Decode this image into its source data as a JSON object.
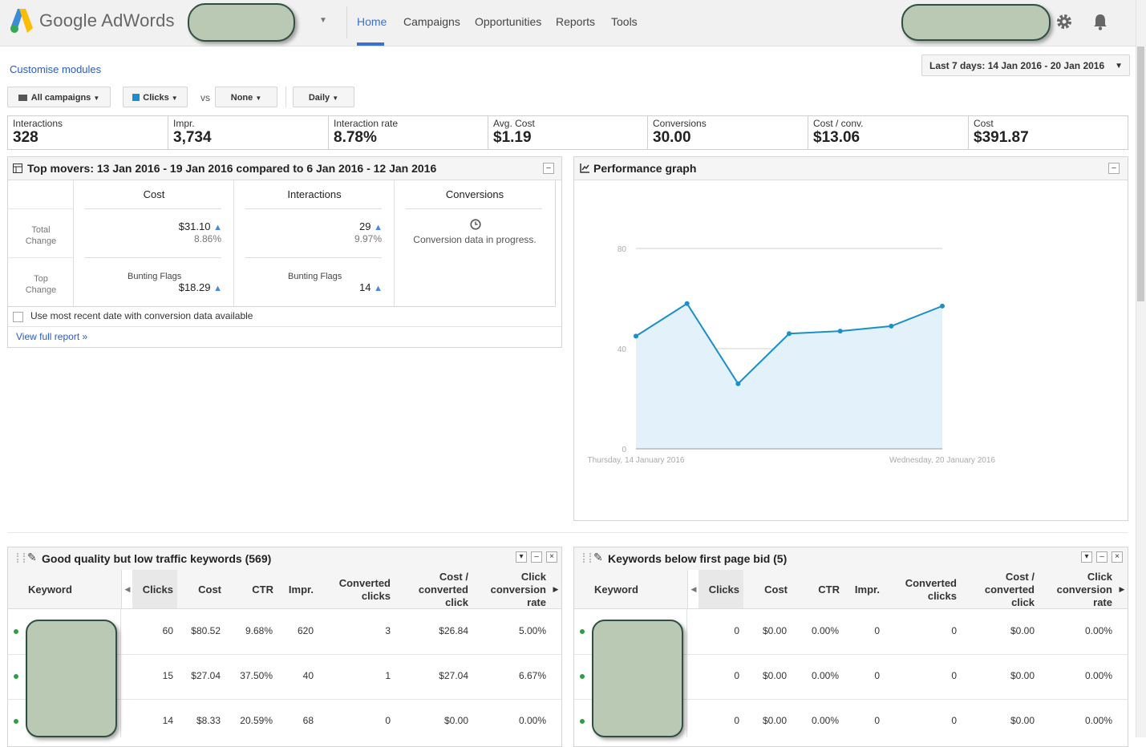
{
  "header": {
    "logo_text": "Google AdWords",
    "nav": [
      "Home",
      "Campaigns",
      "Opportunities",
      "Reports",
      "Tools"
    ],
    "active_nav": "Home"
  },
  "toolbar": {
    "customise": "Customise modules",
    "date_range": "Last 7 days: 14 Jan 2016 - 20 Jan 2016",
    "campaigns_btn": "All campaigns",
    "metric_btn": "Clicks",
    "vs": "vs",
    "compare_btn": "None",
    "period_btn": "Daily"
  },
  "stats": [
    {
      "label": "Interactions",
      "value": "328"
    },
    {
      "label": "Impr.",
      "value": "3,734"
    },
    {
      "label": "Interaction rate",
      "value": "8.78%"
    },
    {
      "label": "Avg. Cost",
      "value": "$1.19"
    },
    {
      "label": "Conversions",
      "value": "30.00"
    },
    {
      "label": "Cost / conv.",
      "value": "$13.06"
    },
    {
      "label": "Cost",
      "value": "$391.87"
    }
  ],
  "top_movers": {
    "title": "Top movers:  13 Jan 2016 - 19 Jan 2016 compared to 6 Jan 2016 - 12 Jan 2016",
    "row_labels": {
      "total_a": "Total",
      "total_b": "Change",
      "top_a": "Top",
      "top_b": "Change"
    },
    "cost": {
      "header": "Cost",
      "total": "$31.10",
      "pct": "8.86%",
      "top_name": "Bunting Flags",
      "top_value": "$18.29"
    },
    "interactions": {
      "header": "Interactions",
      "total": "29",
      "pct": "9.97%",
      "top_name": "Bunting Flags",
      "top_value": "14"
    },
    "conversions": {
      "header": "Conversions",
      "note": "Conversion data in progress."
    },
    "checkbox_label": "Use most recent date with conversion data available",
    "view_full": "View full report »"
  },
  "performance": {
    "title": "Performance graph"
  },
  "chart_data": {
    "type": "area",
    "x": [
      "Thursday, 14 January 2016",
      "2016-01-15",
      "2016-01-16",
      "2016-01-17",
      "2016-01-18",
      "2016-01-19",
      "Wednesday, 20 January 2016"
    ],
    "x_tick_labels": [
      "Thursday, 14 January 2016",
      "Wednesday, 20 January 2016"
    ],
    "series": [
      {
        "values": [
          45,
          58,
          26,
          46,
          47,
          49,
          57
        ]
      }
    ],
    "ylim": [
      0,
      80
    ],
    "y_ticks": [
      "0",
      "40",
      "80"
    ],
    "grid": true,
    "colors": {
      "line": "#1a8fc9",
      "fill": "#e3f1fa"
    }
  },
  "kw_left": {
    "title": "Good quality but low traffic keywords (569)",
    "headers": {
      "keyword": "Keyword",
      "clicks": "Clicks",
      "cost": "Cost",
      "ctr": "CTR",
      "impr": "Impr.",
      "conv_a": "Converted",
      "conv_b": "clicks",
      "cpc_a": "Cost /",
      "cpc_b": "converted",
      "cpc_c": "click",
      "rate_a": "Click",
      "rate_b": "conversion",
      "rate_c": "rate"
    },
    "rows": [
      {
        "clicks": "60",
        "cost": "$80.52",
        "ctr": "9.68%",
        "impr": "620",
        "conv": "3",
        "cpc": "$26.84",
        "rate": "5.00%"
      },
      {
        "clicks": "15",
        "cost": "$27.04",
        "ctr": "37.50%",
        "impr": "40",
        "conv": "1",
        "cpc": "$27.04",
        "rate": "6.67%"
      },
      {
        "clicks": "14",
        "cost": "$8.33",
        "ctr": "20.59%",
        "impr": "68",
        "conv": "0",
        "cpc": "$0.00",
        "rate": "0.00%"
      }
    ]
  },
  "kw_right": {
    "title": "Keywords below first page bid (5)",
    "headers": {
      "keyword": "Keyword",
      "clicks": "Clicks",
      "cost": "Cost",
      "ctr": "CTR",
      "impr": "Impr.",
      "conv_a": "Converted",
      "conv_b": "clicks",
      "cpc_a": "Cost /",
      "cpc_b": "converted",
      "cpc_c": "click",
      "rate_a": "Click",
      "rate_b": "conversion",
      "rate_c": "rate"
    },
    "rows": [
      {
        "clicks": "0",
        "cost": "$0.00",
        "ctr": "0.00%",
        "impr": "0",
        "conv": "0",
        "cpc": "$0.00",
        "rate": "0.00%"
      },
      {
        "clicks": "0",
        "cost": "$0.00",
        "ctr": "0.00%",
        "impr": "0",
        "conv": "0",
        "cpc": "$0.00",
        "rate": "0.00%"
      },
      {
        "clicks": "0",
        "cost": "$0.00",
        "ctr": "0.00%",
        "impr": "0",
        "conv": "0",
        "cpc": "$0.00",
        "rate": "0.00%"
      }
    ]
  }
}
